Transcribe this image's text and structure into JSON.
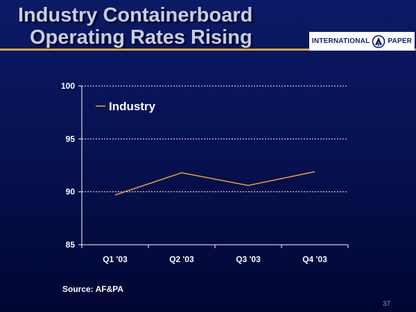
{
  "slide": {
    "title_line1": "Industry Containerboard",
    "title_line2": "Operating Rates Rising",
    "logo_left": "INTERNATIONAL",
    "logo_right": "PAPER",
    "source": "Source: AF&PA",
    "page_number": "37"
  },
  "colors": {
    "accent_rule": "#d8a838",
    "series_line": "#e8a43a",
    "text": "#ffffff"
  },
  "chart_data": {
    "type": "line",
    "title": "",
    "xlabel": "",
    "ylabel": "",
    "categories": [
      "Q1 '03",
      "Q2 '03",
      "Q3 '03",
      "Q4 '03"
    ],
    "series": [
      {
        "name": "Industry",
        "values": [
          89.7,
          91.8,
          90.6,
          91.9
        ]
      }
    ],
    "ylim": [
      85,
      100
    ],
    "yticks": [
      "85",
      "90",
      "95",
      "100"
    ],
    "grid": "horizontal dotted",
    "legend": "top-left"
  }
}
